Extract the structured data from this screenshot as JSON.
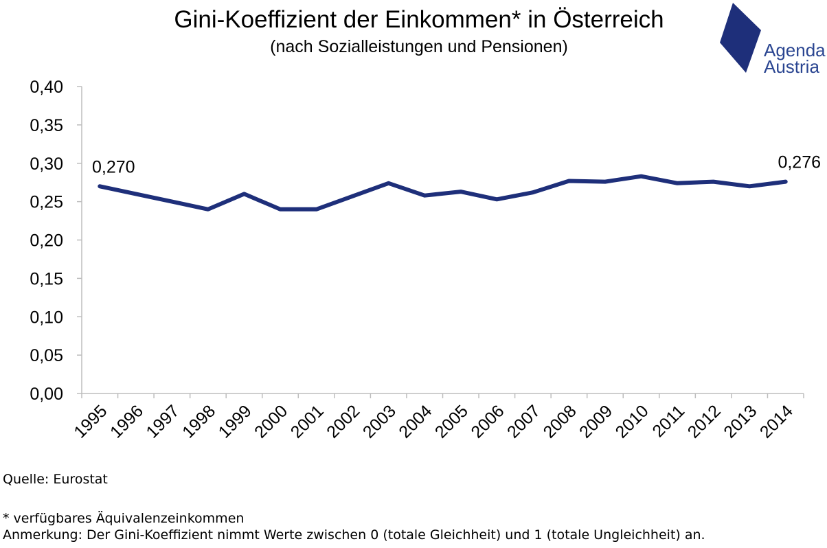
{
  "chart_data": {
    "type": "line",
    "title": "Gini-Koeffizient der Einkommen* in Österreich",
    "subtitle": "(nach Sozialleistungen und Pensionen)",
    "categories": [
      "1995",
      "1996",
      "1997",
      "1998",
      "1999",
      "2000",
      "2001",
      "2002",
      "2003",
      "2004",
      "2005",
      "2006",
      "2007",
      "2008",
      "2009",
      "2010",
      "2011",
      "2012",
      "2013",
      "2014"
    ],
    "series": [
      {
        "values": [
          0.27,
          0.26,
          0.25,
          0.24,
          0.26,
          0.24,
          0.24,
          0.257,
          0.274,
          0.258,
          0.263,
          0.253,
          0.262,
          0.277,
          0.276,
          0.283,
          0.274,
          0.276,
          0.27,
          0.276
        ]
      }
    ],
    "yticks": [
      "0,00",
      "0,05",
      "0,10",
      "0,15",
      "0,20",
      "0,25",
      "0,30",
      "0,35",
      "0,40"
    ],
    "ylim": [
      0,
      0.4
    ],
    "annotations": [
      {
        "label": "0,270",
        "category": "1995"
      },
      {
        "label": "0,276",
        "category": "2014"
      }
    ],
    "xlabel": "",
    "ylabel": "",
    "grid": false,
    "line_color": "#1e2f7a"
  },
  "logo": {
    "line1": "Agenda",
    "line2": "Austria",
    "color": "#1e2f7a",
    "text_color": "#2a4591"
  },
  "footer": {
    "source": "Quelle: Eurostat",
    "note1": "* verfügbares Äquivalenzeinkommen",
    "note2": "Anmerkung: Der Gini-Koeffizient nimmt Werte zwischen 0 (totale Gleichheit) und 1 (totale Ungleichheit) an."
  }
}
